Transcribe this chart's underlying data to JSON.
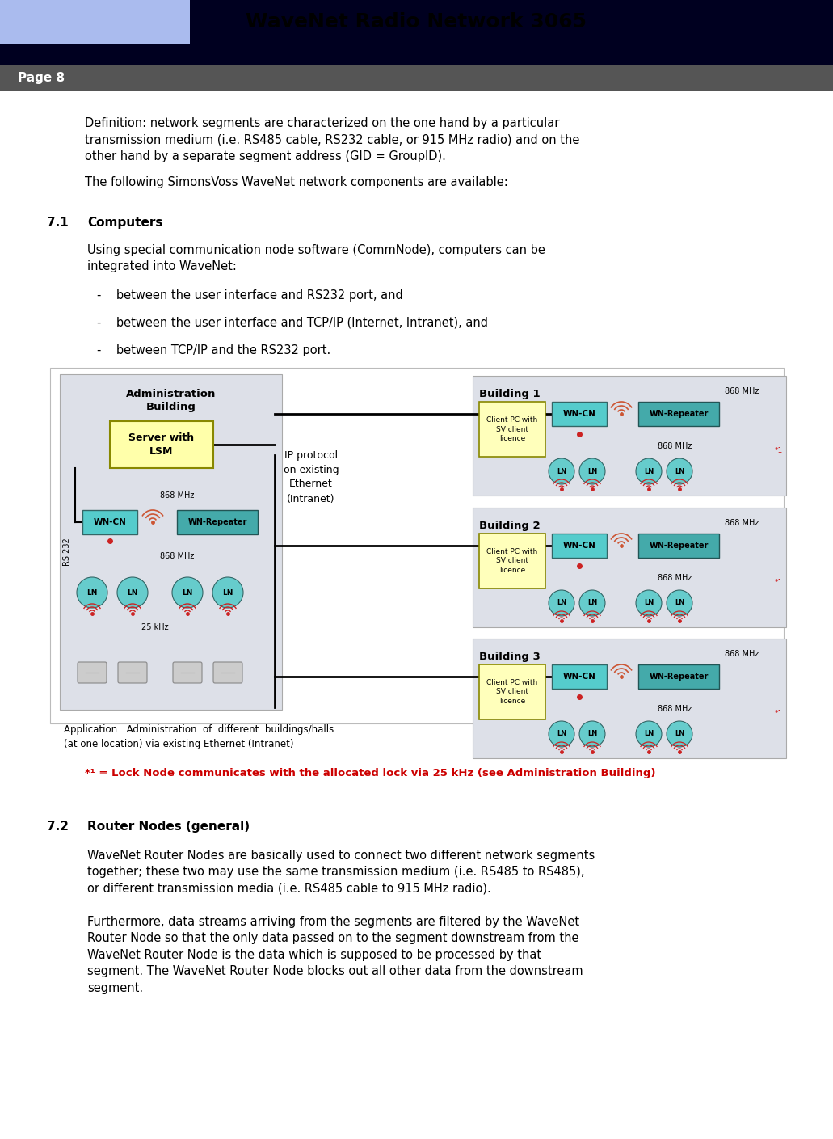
{
  "title": "WaveNet Radio Network 3065",
  "page_label": "Page 8",
  "header_bg_color": "#aabbee",
  "header_bar_color": "#000020",
  "page_label_bg": "#555555",
  "body_bg": "#ffffff",
  "paragraph1": "Definition: network segments are characterized on the one hand by a particular\ntransmission medium (i.e. RS485 cable, RS232 cable, or 915 MHz radio) and on the\nother hand by a separate segment address (GID = GroupID).",
  "paragraph2": "The following SimonsVoss WaveNet network components are available:",
  "section71_title": "7.1",
  "section71_heading": "Computers",
  "section71_text": "Using special communication node software (CommNode), computers can be\nintegrated into WaveNet:",
  "bullet1": "-    between the user interface and RS232 port, and",
  "bullet2": "-    between the user interface and TCP/IP (Internet, Intranet), and",
  "bullet3": "-    between TCP/IP and the RS232 port.",
  "footnote_red": "*¹ = Lock Node communicates with the allocated lock via 25 kHz (see Administration Building)",
  "section72_title": "7.2",
  "section72_heading": "Router Nodes (general)",
  "section72_p1": "WaveNet Router Nodes are basically used to connect two different network segments\ntogether; these two may use the same transmission medium (i.e. RS485 to RS485),\nor different transmission media (i.e. RS485 cable to 915 MHz radio).",
  "section72_p2": "Furthermore, data streams arriving from the segments are filtered by the WaveNet\nRouter Node so that the only data passed on to the segment downstream from the\nWaveNet Router Node is the data which is supposed to be processed by that\nsegment. The WaveNet Router Node blocks out all other data from the downstream\nsegment.",
  "app_note_line1": "Application:  Administration  of  different  buildings/halls",
  "app_note_line2": "(at one location) via existing Ethernet (Intranet)",
  "ip_label": "IP protocol\non existing\nEthernet\n(Intranet)",
  "admin_building_label_line1": "Administration",
  "admin_building_label_line2": "Building",
  "server_label": "Server with\nLSM",
  "building1_label": "Building 1",
  "building2_label": "Building 2",
  "building3_label": "Building 3",
  "client_label": "Client PC with\nSV client\nlicence",
  "wn_cn_label": "WN-CN",
  "wn_repeater_label": "WN-Repeater",
  "lsm_box_color": "#ffffaa",
  "client_box_color": "#ffffbb",
  "wn_cn_color": "#55cccc",
  "wn_repeater_color": "#44aaaa",
  "ln_color": "#66cccc",
  "building_bg": "#dde0e8",
  "rs232_label": "RS 232",
  "mhz868_label": "868 MHz",
  "mhz25_label": "25 kHz",
  "red_color": "#cc0000",
  "star1_label": "*1",
  "ln_label": "LN"
}
